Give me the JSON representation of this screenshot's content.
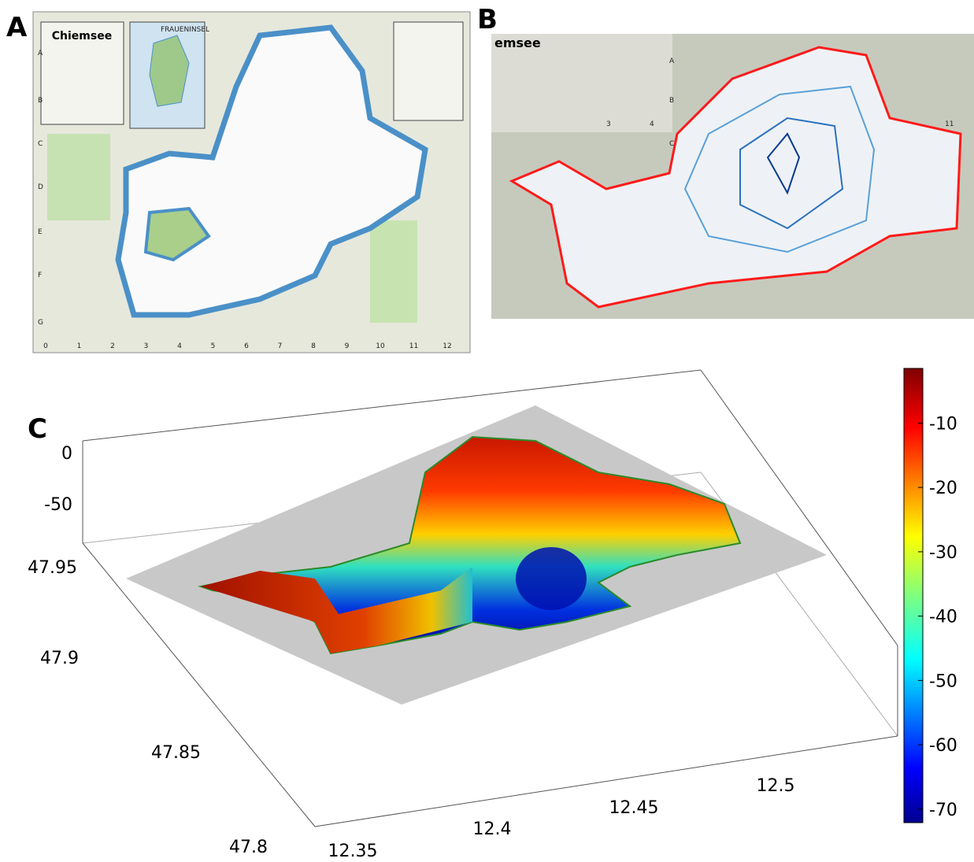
{
  "panels": {
    "a": {
      "label": "A",
      "title": "Chiemsee",
      "inset": "FRAUENINSEL",
      "col_labels": [
        0,
        1,
        2,
        3,
        4,
        5,
        6,
        7,
        8,
        9,
        10,
        11,
        12
      ],
      "row_labels": [
        "A",
        "B",
        "C",
        "D",
        "E",
        "F",
        "G"
      ]
    },
    "b": {
      "label": "B",
      "title": "emsee",
      "row_labels": [
        "A",
        "B",
        "C"
      ],
      "col_labels": [
        3,
        4,
        11
      ]
    },
    "c": {
      "label": "C",
      "zticks": [
        0,
        -50
      ],
      "yticks": [
        47.95,
        47.9,
        47.85,
        47.8
      ],
      "xticks": [
        12.35,
        12.4,
        12.45,
        12.5
      ],
      "colorbar": {
        "lim": [
          -72.1,
          -1.5
        ],
        "ticks": [
          -10,
          -20,
          -30,
          -40,
          -50,
          -60,
          -70
        ]
      }
    }
  }
}
